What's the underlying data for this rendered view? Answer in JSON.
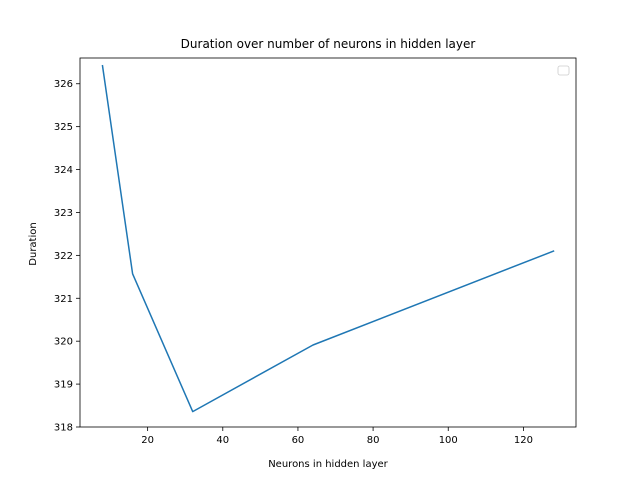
{
  "chart_data": {
    "type": "line",
    "title": "Duration over number of neurons in hidden layer",
    "xlabel": "Neurons in hidden layer",
    "ylabel": "Duration",
    "xlim": [
      2,
      134
    ],
    "ylim": [
      318.0,
      326.6
    ],
    "xticks": [
      20,
      40,
      60,
      80,
      100,
      120
    ],
    "yticks": [
      318,
      319,
      320,
      321,
      322,
      323,
      324,
      325,
      326
    ],
    "grid": false,
    "legend": "top-right (empty)",
    "series": [
      {
        "color": "#1f77b4",
        "x": [
          8,
          16,
          32,
          64,
          128
        ],
        "y": [
          326.42,
          321.57,
          318.36,
          319.91,
          322.1
        ]
      }
    ]
  }
}
